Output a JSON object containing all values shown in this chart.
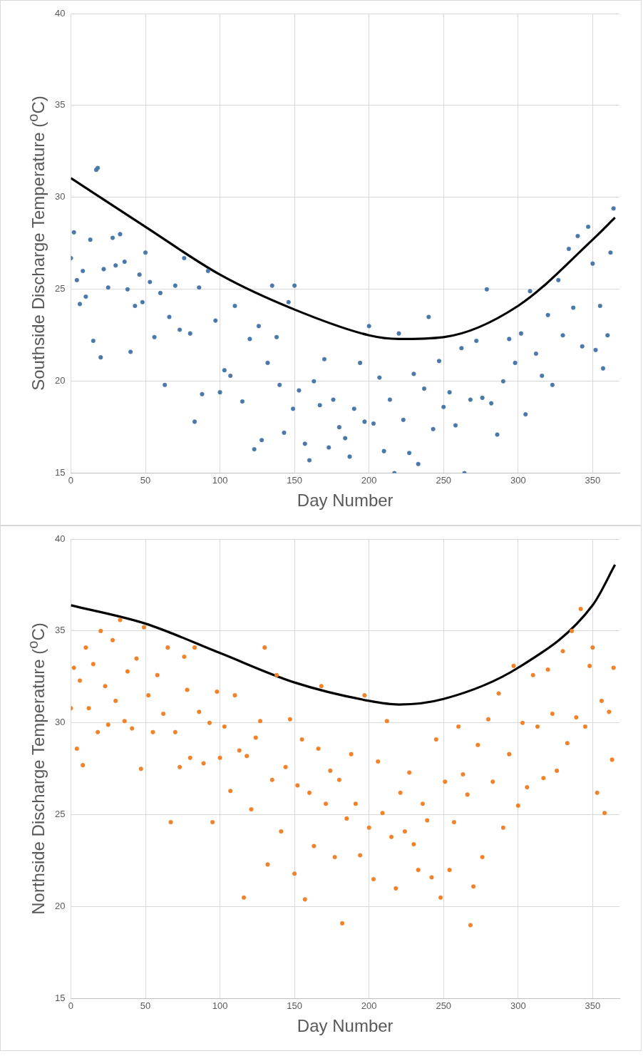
{
  "chart_data": [
    {
      "type": "scatter",
      "xlabel": "Day Number",
      "ylabel": "Southside Discharge Temperature ($^{o}$C)",
      "xlim": [
        0,
        368
      ],
      "xticks": [
        0,
        50,
        100,
        150,
        200,
        250,
        300,
        350
      ],
      "ylim": [
        15,
        40
      ],
      "yticks": [
        15,
        20,
        25,
        30,
        35,
        40
      ],
      "grid": true,
      "legend": false,
      "series": [
        {
          "marker": "circle",
          "color": "#4a78aa",
          "x": [
            0,
            2,
            4,
            6,
            8,
            10,
            13,
            15,
            17,
            18,
            20,
            22,
            25,
            28,
            30,
            33,
            36,
            38,
            40,
            43,
            46,
            48,
            50,
            53,
            56,
            60,
            63,
            66,
            70,
            73,
            76,
            80,
            83,
            86,
            88,
            92,
            97,
            100,
            103,
            107,
            110,
            115,
            120,
            123,
            126,
            128,
            132,
            135,
            138,
            140,
            143,
            146,
            149,
            150,
            153,
            157,
            160,
            163,
            167,
            170,
            173,
            176,
            180,
            184,
            187,
            190,
            194,
            197,
            200,
            203,
            207,
            210,
            214,
            217,
            220,
            223,
            227,
            230,
            233,
            237,
            240,
            243,
            247,
            250,
            254,
            258,
            262,
            264,
            268,
            272,
            276,
            279,
            282,
            286,
            290,
            294,
            298,
            302,
            305,
            308,
            312,
            316,
            320,
            323,
            327,
            330,
            334,
            337,
            340,
            343,
            347,
            350,
            352,
            355,
            357,
            360,
            362,
            364
          ],
          "values": [
            26.7,
            28.1,
            25.5,
            24.2,
            26,
            24.6,
            27.7,
            22.2,
            31.5,
            31.6,
            21.3,
            26.1,
            25.1,
            27.8,
            26.3,
            28,
            26.5,
            25,
            21.6,
            24.1,
            25.8,
            24.3,
            27,
            25.4,
            22.4,
            24.8,
            19.8,
            23.5,
            25.2,
            22.8,
            26.7,
            22.6,
            17.8,
            25.1,
            19.3,
            26,
            23.3,
            19.4,
            20.6,
            20.3,
            24.1,
            18.9,
            22.3,
            16.3,
            23,
            16.8,
            21,
            25.2,
            22.4,
            19.8,
            17.2,
            24.3,
            18.5,
            25.2,
            19.5,
            16.6,
            15.7,
            20,
            18.7,
            21.2,
            16.4,
            19,
            17.5,
            16.9,
            15.9,
            18.5,
            21,
            17.8,
            23,
            17.7,
            20.2,
            16.2,
            19,
            15,
            22.6,
            17.9,
            16.1,
            20.4,
            15.5,
            19.6,
            23.5,
            17.4,
            21.1,
            18.6,
            19.4,
            17.6,
            21.8,
            15,
            19,
            22.2,
            19.1,
            25,
            18.8,
            17.1,
            20,
            22.3,
            21,
            22.6,
            18.2,
            24.9,
            21.5,
            20.3,
            23.6,
            19.8,
            25.5,
            22.5,
            27.2,
            24,
            27.9,
            21.9,
            28.4,
            26.4,
            21.7,
            24.1,
            20.7,
            22.5,
            27,
            29.4
          ]
        },
        {
          "type": "line",
          "marker": "none",
          "color": "#000000",
          "x": [
            0,
            50,
            100,
            150,
            200,
            220,
            250,
            300,
            350,
            365
          ],
          "values": [
            31.05,
            28.4,
            25.8,
            23.9,
            22.5,
            22.3,
            22.4,
            24.1,
            27.7,
            28.9
          ]
        }
      ]
    },
    {
      "type": "scatter",
      "xlabel": "Day Number",
      "ylabel": "Northside Discharge Temperature ($^{o}$C)",
      "xlim": [
        0,
        368
      ],
      "xticks": [
        0,
        50,
        100,
        150,
        200,
        250,
        300,
        350
      ],
      "ylim": [
        15,
        40
      ],
      "yticks": [
        15,
        20,
        25,
        30,
        35,
        40
      ],
      "grid": true,
      "legend": false,
      "series": [
        {
          "marker": "circle",
          "color": "#f0822a",
          "x": [
            0,
            2,
            4,
            6,
            8,
            10,
            12,
            15,
            18,
            20,
            23,
            25,
            28,
            30,
            33,
            36,
            38,
            41,
            44,
            47,
            49,
            52,
            55,
            58,
            62,
            65,
            67,
            70,
            73,
            76,
            78,
            80,
            83,
            86,
            89,
            93,
            95,
            98,
            100,
            103,
            107,
            110,
            113,
            116,
            118,
            121,
            124,
            127,
            130,
            132,
            135,
            138,
            141,
            144,
            147,
            150,
            152,
            155,
            157,
            160,
            163,
            166,
            168,
            171,
            174,
            177,
            180,
            182,
            185,
            188,
            191,
            194,
            197,
            200,
            203,
            206,
            209,
            212,
            215,
            218,
            221,
            224,
            227,
            230,
            233,
            236,
            239,
            242,
            245,
            248,
            251,
            254,
            257,
            260,
            263,
            266,
            268,
            270,
            273,
            276,
            280,
            283,
            287,
            290,
            294,
            297,
            300,
            303,
            306,
            310,
            313,
            317,
            320,
            323,
            326,
            330,
            333,
            336,
            339,
            342,
            345,
            348,
            350,
            353,
            356,
            358,
            361,
            363,
            364
          ],
          "values": [
            30.8,
            33,
            28.6,
            32.3,
            27.7,
            34.1,
            30.8,
            33.2,
            29.5,
            35,
            32,
            29.9,
            34.5,
            31.2,
            35.6,
            30.1,
            32.8,
            29.7,
            33.5,
            27.5,
            35.2,
            31.5,
            29.5,
            32.6,
            30.5,
            34.1,
            24.6,
            29.5,
            27.6,
            33.6,
            31.8,
            28.1,
            34.1,
            30.6,
            27.8,
            30,
            24.6,
            31.7,
            28.1,
            29.8,
            26.3,
            31.5,
            28.5,
            20.5,
            28.2,
            25.3,
            29.2,
            30.1,
            34.1,
            22.3,
            26.9,
            32.6,
            24.1,
            27.6,
            30.2,
            21.8,
            26.6,
            29.1,
            20.4,
            26.2,
            23.3,
            28.6,
            32,
            25.6,
            27.4,
            22.7,
            26.9,
            19.1,
            24.8,
            28.3,
            25.6,
            22.8,
            31.5,
            24.3,
            21.5,
            27.9,
            25.1,
            30.1,
            23.8,
            21,
            26.2,
            24.1,
            27.3,
            23.4,
            22,
            25.6,
            24.7,
            21.6,
            29.1,
            20.5,
            26.8,
            22,
            24.6,
            29.8,
            27.2,
            26.1,
            19,
            21.1,
            28.8,
            22.7,
            30.2,
            26.8,
            31.6,
            24.3,
            28.3,
            33.1,
            25.5,
            30,
            26.5,
            32.6,
            29.8,
            27,
            32.9,
            30.5,
            27.4,
            33.9,
            28.9,
            35,
            30.3,
            36.2,
            29.8,
            33.1,
            34.1,
            26.2,
            31.2,
            25.1,
            30.6,
            28,
            33
          ]
        },
        {
          "type": "line",
          "marker": "none",
          "color": "#000000",
          "x": [
            0,
            50,
            100,
            150,
            200,
            220,
            250,
            300,
            350,
            365
          ],
          "values": [
            36.4,
            35.4,
            33.8,
            32.2,
            31.2,
            31,
            31.3,
            33,
            36.4,
            38.6
          ]
        }
      ]
    }
  ]
}
